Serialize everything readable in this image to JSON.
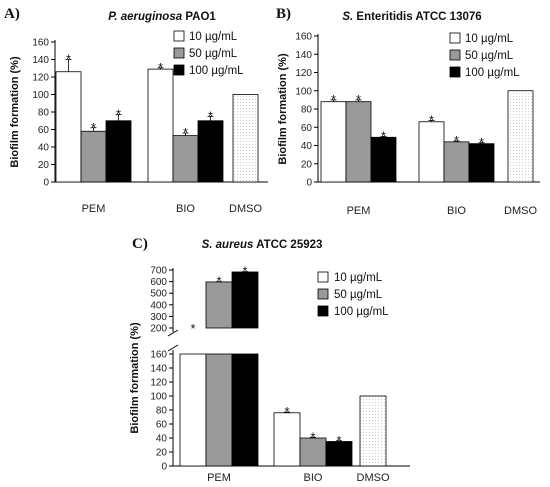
{
  "chart_data": [
    {
      "type": "bar",
      "panel_label": "A)",
      "title_italic": "P. aeruginosa",
      "title_rest": " PAO1",
      "ylabel": "Biofilm formation (%)",
      "xlabel": "",
      "ylim": [
        0,
        160
      ],
      "yticks": [
        0,
        20,
        40,
        60,
        80,
        100,
        120,
        140,
        160
      ],
      "legend": {
        "position": "top-right",
        "entries": [
          "10 µg/mL",
          "50 µg/mL",
          "100 µg/mL"
        ]
      },
      "groups": [
        {
          "label": "PEM",
          "bars": [
            {
              "series": "10 µg/mL",
              "value": 126,
              "error": 14,
              "star": true
            },
            {
              "series": "50 µg/mL",
              "value": 58,
              "error": 4,
              "star": true
            },
            {
              "series": "100 µg/mL",
              "value": 70,
              "error": 7,
              "star": true
            }
          ]
        },
        {
          "label": "BIO",
          "bars": [
            {
              "series": "10 µg/mL",
              "value": 129,
              "error": 1.5,
              "star": true
            },
            {
              "series": "50 µg/mL",
              "value": 53,
              "error": 3,
              "star": true
            },
            {
              "series": "100 µg/mL",
              "value": 70,
              "error": 5,
              "star": true
            }
          ]
        },
        {
          "label": "DMSO",
          "bars": [
            {
              "series": "DMSO",
              "value": 100,
              "error": 0,
              "star": false
            }
          ]
        }
      ]
    },
    {
      "type": "bar",
      "panel_label": "B)",
      "title_italic": "S.",
      "title_rest": " Enteritidis ATCC 13076",
      "ylabel": "Biofilm formation (%)",
      "xlabel": "",
      "ylim": [
        0,
        160
      ],
      "yticks": [
        0,
        20,
        40,
        60,
        80,
        100,
        120,
        140,
        160
      ],
      "legend": {
        "position": "top-right",
        "entries": [
          "10 µg/mL",
          "50 µg/mL",
          "100 µg/mL"
        ]
      },
      "groups": [
        {
          "label": "PEM",
          "bars": [
            {
              "series": "10 µg/mL",
              "value": 88,
              "error": 2,
              "star": true
            },
            {
              "series": "50 µg/mL",
              "value": 88,
              "error": 2,
              "star": true
            },
            {
              "series": "100 µg/mL",
              "value": 49,
              "error": 1,
              "star": true
            }
          ]
        },
        {
          "label": "BIO",
          "bars": [
            {
              "series": "10 µg/mL",
              "value": 66,
              "error": 1.5,
              "star": true
            },
            {
              "series": "50 µg/mL",
              "value": 44,
              "error": 1,
              "star": true
            },
            {
              "series": "100 µg/mL",
              "value": 42,
              "error": 1,
              "star": true
            }
          ]
        },
        {
          "label": "DMSO",
          "bars": [
            {
              "series": "DMSO",
              "value": 100,
              "error": 0,
              "star": false
            }
          ]
        }
      ]
    },
    {
      "type": "bar",
      "panel_label": "C)",
      "title_italic": "S. aureus",
      "title_rest": " ATCC 25923",
      "ylabel": "Biofilm formation (%)",
      "xlabel": "",
      "broken_axis": true,
      "lower_range": [
        0,
        160
      ],
      "lower_yticks": [
        0,
        20,
        40,
        60,
        80,
        100,
        120,
        140,
        160
      ],
      "upper_range": [
        200,
        700
      ],
      "upper_yticks": [
        200,
        300,
        400,
        500,
        600,
        700
      ],
      "legend": {
        "position": "top-right",
        "entries": [
          "10 µg/mL",
          "50 µg/mL",
          "100 µg/mL"
        ]
      },
      "groups": [
        {
          "label": "PEM",
          "bars": [
            {
              "series": "10 µg/mL",
              "value": 190,
              "error": 0,
              "star": true
            },
            {
              "series": "50 µg/mL",
              "value": 597,
              "error": 3,
              "star": true
            },
            {
              "series": "100 µg/mL",
              "value": 683,
              "error": 3,
              "star": true
            }
          ]
        },
        {
          "label": "BIO",
          "bars": [
            {
              "series": "10 µg/mL",
              "value": 76,
              "error": 1,
              "star": true
            },
            {
              "series": "50 µg/mL",
              "value": 40,
              "error": 1,
              "star": true
            },
            {
              "series": "100 µg/mL",
              "value": 35,
              "error": 1,
              "star": true
            }
          ]
        },
        {
          "label": "DMSO",
          "bars": [
            {
              "series": "DMSO",
              "value": 100,
              "error": 0,
              "star": false
            }
          ]
        }
      ]
    }
  ],
  "star_symbol": "*",
  "colors": {
    "10 µg/mL": "#ffffff",
    "50 µg/mL": "#9a9a9a",
    "100 µg/mL": "#000000",
    "DMSO": "#f7f7f7"
  }
}
